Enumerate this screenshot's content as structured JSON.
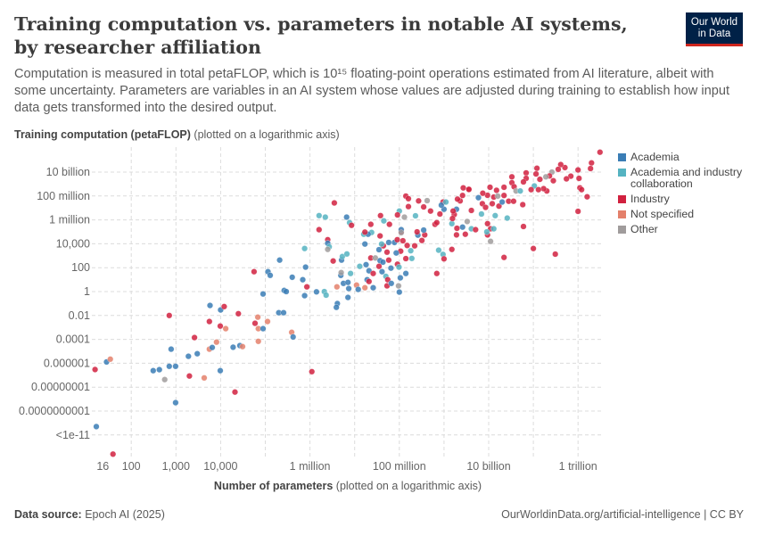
{
  "header": {
    "title": "Training computation vs. parameters in notable AI systems, by researcher affiliation",
    "subtitle": "Computation is measured in total petaFLOP, which is 10¹⁵ floating-point operations estimated from AI literature, albeit with some uncertainty. Parameters are variables in an AI system whose values are adjusted during training to establish how input data gets transformed into the desired output.",
    "logo_line1": "Our World",
    "logo_line2": "in Data"
  },
  "footer": {
    "source_label": "Data source:",
    "source": "Epoch AI (2025)",
    "url": "OurWorldinData.org/artificial-intelligence | CC BY"
  },
  "chart_data": {
    "type": "scatter",
    "ylabel_bold": "Training computation (petaFLOP)",
    "ylabel_note": "(plotted on a logarithmic axis)",
    "xlabel_bold": "Number of parameters",
    "xlabel_note": "(plotted on a logarithmic axis)",
    "xscale": "log",
    "yscale": "log",
    "grid": true,
    "legend_position": "right",
    "xticks": [
      {
        "value": 16,
        "label": "16"
      },
      {
        "value": 100,
        "label": "100"
      },
      {
        "value": 1000,
        "label": "1,000"
      },
      {
        "value": 10000,
        "label": "10,000"
      },
      {
        "value": 1000000,
        "label": "1 million"
      },
      {
        "value": 100000000,
        "label": "100 million"
      },
      {
        "value": 10000000000,
        "label": "10 billion"
      },
      {
        "value": 1000000000000,
        "label": "1 trillion"
      }
    ],
    "yticks": [
      {
        "value": 10000000000.0,
        "label": "10 billion"
      },
      {
        "value": 100000000.0,
        "label": "100 million"
      },
      {
        "value": 1000000.0,
        "label": "1 million"
      },
      {
        "value": 10000.0,
        "label": "10,000"
      },
      {
        "value": 100,
        "label": "100"
      },
      {
        "value": 1,
        "label": "1"
      },
      {
        "value": 0.01,
        "label": "0.01"
      },
      {
        "value": 0.0001,
        "label": "0.0001"
      },
      {
        "value": 1e-06,
        "label": "0.000001"
      },
      {
        "value": 1e-08,
        "label": "0.00000001"
      },
      {
        "value": 1e-10,
        "label": "0.0000000001"
      },
      {
        "value": 1e-12,
        "label": "<1e-11"
      }
    ],
    "series": [
      {
        "key": "A",
        "name": "Academia",
        "color": "#3a7db5"
      },
      {
        "key": "C",
        "name": "Academia and industry collaboration",
        "color": "#55b3c1"
      },
      {
        "key": "I",
        "name": "Industry",
        "color": "#d1213f"
      },
      {
        "key": "N",
        "name": "Not specified",
        "color": "#e4806b"
      },
      {
        "key": "O",
        "name": "Other",
        "color": "#a09c9c"
      }
    ],
    "points": [
      [
        15.5,
        3e-07,
        "I"
      ],
      [
        28,
        1.3e-06,
        "A"
      ],
      [
        34,
        2.2e-06,
        "N"
      ],
      [
        16.5,
        5e-12,
        "A"
      ],
      [
        39,
        2.5e-14,
        "I"
      ],
      [
        310,
        2.4e-07,
        "A"
      ],
      [
        425,
        2.9e-07,
        "A"
      ],
      [
        560,
        4.3e-08,
        "O"
      ],
      [
        710,
        5.6e-07,
        "A"
      ],
      [
        980,
        5.6e-07,
        "A"
      ],
      [
        780,
        1.5e-05,
        "A"
      ],
      [
        710,
        0.01,
        "I"
      ],
      [
        980,
        5e-10,
        "A"
      ],
      [
        1900,
        3.8e-06,
        "A"
      ],
      [
        3000,
        6.3e-06,
        "A"
      ],
      [
        2600,
        0.00014,
        "I"
      ],
      [
        2000,
        8.5e-08,
        "I"
      ],
      [
        4300,
        6e-08,
        "N"
      ],
      [
        5600,
        1.5e-05,
        "N"
      ],
      [
        6500,
        2.1e-05,
        "A"
      ],
      [
        8100,
        5.9e-05,
        "N"
      ],
      [
        9800,
        2.4e-07,
        "A"
      ],
      [
        5600,
        0.0031,
        "I"
      ],
      [
        5800,
        0.068,
        "A"
      ],
      [
        9800,
        0.0013,
        "I"
      ],
      [
        10000,
        0.029,
        "A"
      ],
      [
        12000,
        0.056,
        "I"
      ],
      [
        13000,
        0.00078,
        "N"
      ],
      [
        21000,
        3.9e-09,
        "I"
      ],
      [
        19000,
        2.2e-05,
        "A"
      ],
      [
        27000,
        3e-05,
        "A"
      ],
      [
        31000,
        2.5e-05,
        "N"
      ],
      [
        25000,
        0.014,
        "I"
      ],
      [
        56000,
        46,
        "I"
      ],
      [
        68000,
        0.0072,
        "N"
      ],
      [
        59000,
        0.0022,
        "I"
      ],
      [
        70000,
        0.00078,
        "N"
      ],
      [
        70000,
        6.9e-05,
        "N"
      ],
      [
        89000,
        0.00078,
        "A"
      ],
      [
        112000,
        0.0031,
        "N"
      ],
      [
        89000,
        0.63,
        "A"
      ],
      [
        115000,
        46,
        "A"
      ],
      [
        129000,
        23,
        "A"
      ],
      [
        210000,
        430,
        "A"
      ],
      [
        200000,
        0.017,
        "A"
      ],
      [
        257000,
        0.017,
        "A"
      ],
      [
        265000,
        1.25,
        "A"
      ],
      [
        295000,
        1,
        "A"
      ],
      [
        400000,
        16,
        "A"
      ],
      [
        390000,
        0.00039,
        "N"
      ],
      [
        420000,
        0.00016,
        "A"
      ],
      [
        690000,
        9.8,
        "A"
      ],
      [
        760000,
        0.45,
        "A"
      ],
      [
        850000,
        2.5,
        "I"
      ],
      [
        760000,
        4000,
        "C"
      ],
      [
        800000,
        110,
        "A"
      ],
      [
        1100000.0,
        2e-07,
        "I"
      ],
      [
        1400000.0,
        0.95,
        "A"
      ],
      [
        2100000.0,
        1,
        "C"
      ],
      [
        2300000.0,
        0.5,
        "C"
      ],
      [
        1600000.0,
        2300000.0,
        "C"
      ],
      [
        2200000.0,
        1700000.0,
        "C"
      ],
      [
        1600000.0,
        150000.0,
        "I"
      ],
      [
        3500000.0,
        26000000.0,
        "I"
      ],
      [
        2500000.0,
        22000.0,
        "I"
      ],
      [
        2500000.0,
        11000.0,
        "A"
      ],
      [
        2700000.0,
        5600,
        "C"
      ],
      [
        2500000.0,
        3400,
        "O"
      ],
      [
        3300000.0,
        360,
        "I"
      ],
      [
        4000000.0,
        2.5,
        "N"
      ],
      [
        4100000.0,
        0.1,
        "A"
      ],
      [
        3900000.0,
        0.048,
        "A"
      ],
      [
        6600000.0,
        1700000.0,
        "A"
      ],
      [
        7700000.0,
        590000.0,
        "C"
      ],
      [
        8500000.0,
        350000.0,
        "I"
      ],
      [
        5100000.0,
        430,
        "A"
      ],
      [
        5300000.0,
        850,
        "C"
      ],
      [
        6700000.0,
        1400,
        "C"
      ],
      [
        4900000.0,
        23,
        "A"
      ],
      [
        5000000.0,
        39,
        "O"
      ],
      [
        8100000.0,
        33,
        "C"
      ],
      [
        5600000.0,
        4.9,
        "A"
      ],
      [
        7100000.0,
        5.9,
        "A"
      ],
      [
        7400000.0,
        1.8,
        "A"
      ],
      [
        7100000.0,
        0.32,
        "A"
      ],
      [
        11000000.0,
        3.5,
        "N"
      ],
      [
        17000000.0,
        2.1,
        "N"
      ],
      [
        12000000.0,
        1.5,
        "A"
      ],
      [
        13000000.0,
        130,
        "C"
      ],
      [
        18000000.0,
        180,
        "A"
      ],
      [
        26000000.0,
        2.1,
        "A"
      ],
      [
        21000000.0,
        55,
        "A"
      ],
      [
        19000000.0,
        9.8,
        "A"
      ],
      [
        21000000.0,
        7,
        "I"
      ],
      [
        17000000.0,
        9500,
        "A"
      ],
      [
        16000000.0,
        63000.0,
        "C"
      ],
      [
        24000000.0,
        89000.0,
        "C"
      ],
      [
        20000000.0,
        63000.0,
        "A"
      ],
      [
        17000000.0,
        95000.0,
        "I"
      ],
      [
        23000000.0,
        420000.0,
        "I"
      ],
      [
        38000000.0,
        2300000.0,
        "I"
      ],
      [
        45000000.0,
        830000.0,
        "C"
      ],
      [
        60000000.0,
        420000.0,
        "I"
      ],
      [
        37000000.0,
        45000.0,
        "I"
      ],
      [
        35000000.0,
        3200,
        "A"
      ],
      [
        44000000.0,
        6700,
        "I"
      ],
      [
        40000000.0,
        9500,
        "C"
      ],
      [
        23000000.0,
        650,
        "I"
      ],
      [
        29000000.0,
        650,
        "O"
      ],
      [
        37000000.0,
        390,
        "A"
      ],
      [
        43000000.0,
        290,
        "A"
      ],
      [
        35000000.0,
        130,
        "I"
      ],
      [
        26000000.0,
        33,
        "I"
      ],
      [
        41000000.0,
        46,
        "A"
      ],
      [
        58000000.0,
        430,
        "I"
      ],
      [
        58000000.0,
        13000.0,
        "A"
      ],
      [
        53000000.0,
        2000,
        "I"
      ],
      [
        78000000.0,
        13000.0,
        "A"
      ],
      [
        90000000.0,
        22000.0,
        "I"
      ],
      [
        91000000.0,
        195,
        "I"
      ],
      [
        65000000.0,
        92,
        "A"
      ],
      [
        50000000.0,
        19,
        "C"
      ],
      [
        55000000.0,
        9.8,
        "I"
      ],
      [
        53000000.0,
        3,
        "I"
      ],
      [
        66000000.0,
        4.9,
        "A"
      ],
      [
        98000000.0,
        110,
        "C"
      ],
      [
        96000000.0,
        3,
        "O"
      ],
      [
        100000000.0,
        0.9,
        "A"
      ],
      [
        105000000.0,
        14,
        "A"
      ],
      [
        140000000.0,
        33,
        "A"
      ],
      [
        107000000.0,
        2400,
        "I"
      ],
      [
        85000000.0,
        1700,
        "A"
      ],
      [
        110000000.0,
        100000.0,
        "I"
      ],
      [
        110000000.0,
        150000.0,
        "A"
      ],
      [
        110000000.0,
        85000.0,
        "O"
      ],
      [
        100000000.0,
        5500000.0,
        "C"
      ],
      [
        130000000.0,
        1700000.0,
        "O"
      ],
      [
        91000000.0,
        2600000.0,
        "I"
      ],
      [
        140000000.0,
        98000000.0,
        "I"
      ],
      [
        160000000.0,
        60000000.0,
        "I"
      ],
      [
        160000000.0,
        13000000.0,
        "I"
      ],
      [
        120000000.0,
        18000.0,
        "I"
      ],
      [
        150000000.0,
        7200,
        "I"
      ],
      [
        180000000.0,
        2600,
        "C"
      ],
      [
        140000000.0,
        580,
        "I"
      ],
      [
        190000000.0,
        600,
        "C"
      ],
      [
        220000000.0,
        6700,
        "I"
      ],
      [
        260000000.0,
        53000.0,
        "A"
      ],
      [
        230000000.0,
        2200000.0,
        "C"
      ],
      [
        270000000.0,
        39000000.0,
        "I"
      ],
      [
        250000000.0,
        100000.0,
        "I"
      ],
      [
        350000000.0,
        12000000.0,
        "I"
      ],
      [
        420000000.0,
        41000000.0,
        "O"
      ],
      [
        370000000.0,
        56000.0,
        "I"
      ],
      [
        350000000.0,
        140000.0,
        "A"
      ],
      [
        320000000.0,
        19000.0,
        "I"
      ],
      [
        760000000.0,
        2900,
        "C"
      ],
      [
        950000000.0,
        1300,
        "C"
      ],
      [
        1000000000.0,
        550,
        "I"
      ],
      [
        690000000.0,
        33,
        "I"
      ],
      [
        630000000.0,
        420000.0,
        "I"
      ],
      [
        690000000.0,
        590000.0,
        "I"
      ],
      [
        1000000000.0,
        7700000.0,
        "A"
      ],
      [
        1500000000.0,
        490000.0,
        "C"
      ],
      [
        1500000000.0,
        3400,
        "I"
      ],
      [
        1900000000.0,
        56000.0,
        "I"
      ],
      [
        3000000000.0,
        63000.0,
        "I"
      ],
      [
        2600000000.0,
        250000.0,
        "A"
      ],
      [
        4100000000.0,
        180000.0,
        "C"
      ],
      [
        3300000000.0,
        740000.0,
        "O"
      ],
      [
        2700000000.0,
        480000000.0,
        "I"
      ],
      [
        3600000000.0,
        340000000.0,
        "I"
      ],
      [
        1700000000.0,
        2800000.0,
        "I"
      ],
      [
        1900000000.0,
        7700000.0,
        "A"
      ],
      [
        2300000000.0,
        39000000.0,
        "I"
      ],
      [
        950000000.0,
        31000000.0,
        "I"
      ],
      [
        3100000000000.0,
        460000000000.0,
        "I"
      ],
      [
        2000000000000.0,
        59000000000.0,
        "I"
      ],
      [
        1900000000000.0,
        20000000000.0,
        "I"
      ],
      [
        1000000000000.0,
        15000000000.0,
        "I"
      ],
      [
        1050000000000.0,
        3000000000.0,
        "I"
      ],
      [
        1100000000000.0,
        480000000.0,
        "I"
      ],
      [
        1200000000000.0,
        340000000.0,
        "I"
      ],
      [
        1600000000000.0,
        85000000.0,
        "I"
      ],
      [
        1000000000000.0,
        5200000.0,
        "I"
      ],
      [
        690000000000.0,
        4500000000.0,
        "I"
      ],
      [
        550000000000.0,
        2700000000.0,
        "I"
      ],
      [
        510000000000.0,
        24000000000.0,
        "I"
      ],
      [
        410000000000.0,
        42000000000.0,
        "I"
      ],
      [
        360000000000.0,
        17000000000.0,
        "I"
      ],
      [
        260000000000.0,
        10000000000.0,
        "O"
      ],
      [
        230000000000.0,
        4800000000.0,
        "I"
      ],
      [
        280000000000.0,
        1900000000.0,
        "I"
      ],
      [
        200000000000.0,
        260000000.0,
        "I"
      ],
      [
        170000000000.0,
        410000000.0,
        "I"
      ],
      [
        310000000000.0,
        1360,
        "I"
      ],
      [
        100000000000.0,
        4000,
        "I"
      ],
      [
        120000000000.0,
        21000000000.0,
        "I"
      ],
      [
        190000000000.0,
        4000000000.0,
        "O"
      ],
      [
        115000000000.0,
        7000000000.0,
        "I"
      ],
      [
        140000000000.0,
        2500000000.0,
        "I"
      ],
      [
        69000000000.0,
        8500000000.0,
        "I"
      ],
      [
        69000000000.0,
        3000000000.0,
        "I"
      ],
      [
        105000000000.0,
        700000000.0,
        "C"
      ],
      [
        130000000000.0,
        340000000.0,
        "I"
      ],
      [
        89000000000.0,
        340000000.0,
        "I"
      ],
      [
        60000000000.0,
        1500000000.0,
        "I"
      ],
      [
        33000000000.0,
        4000000000.0,
        "I"
      ],
      [
        33000000000.0,
        1300000000.0,
        "I"
      ],
      [
        22000000000.0,
        540000000.0,
        "I"
      ],
      [
        37000000000.0,
        600000000.0,
        "I"
      ],
      [
        41000000000.0,
        260000000.0,
        "O"
      ],
      [
        51000000000.0,
        260000000.0,
        "C"
      ],
      [
        58000000000.0,
        19000000.0,
        "I"
      ],
      [
        60000000000.0,
        280000.0,
        "I"
      ],
      [
        22000000000.0,
        720,
        "I"
      ],
      [
        15000000000.0,
        300000000.0,
        "I"
      ],
      [
        10700000000.0,
        540000000.0,
        "I"
      ],
      [
        13000000000.0,
        81000000.0,
        "I"
      ],
      [
        22000000000.0,
        110000000.0,
        "I"
      ],
      [
        28000000000.0,
        36000000.0,
        "I"
      ],
      [
        36000000000.0,
        36000000.0,
        "I"
      ],
      [
        17000000000.0,
        14000000.0,
        "I"
      ],
      [
        20000000000.0,
        31000000.0,
        "A"
      ],
      [
        9400000000.0,
        115000000.0,
        "I"
      ],
      [
        7400000000.0,
        170000000.0,
        "I"
      ],
      [
        16000000000.0,
        98000000.0,
        "O"
      ],
      [
        12000000000.0,
        23000000.0,
        "I"
      ],
      [
        7200000000.0,
        23000000.0,
        "I"
      ],
      [
        8500000000.0,
        11000000.0,
        "I"
      ],
      [
        5900000000.0,
        72000000.0,
        "A"
      ],
      [
        6900000000.0,
        3100000.0,
        "C"
      ],
      [
        14000000000.0,
        2300000.0,
        "C"
      ],
      [
        26000000000.0,
        1400000.0,
        "C"
      ],
      [
        9400000000.0,
        490000.0,
        "I"
      ],
      [
        11000000000.0,
        180000.0,
        "I"
      ],
      [
        9400000000.0,
        56000.0,
        "I"
      ],
      [
        13000000000.0,
        180000.0,
        "C"
      ],
      [
        9100000000.0,
        100000.0,
        "C"
      ],
      [
        11000000000.0,
        16000.0,
        "O"
      ],
      [
        5100000000.0,
        150000.0,
        "I"
      ],
      [
        4100000000.0,
        6200000.0,
        "I"
      ],
      [
        3600000000.0,
        360000000.0,
        "I"
      ],
      [
        2600000000.0,
        110000000.0,
        "I"
      ],
      [
        2000000000.0,
        55000000.0,
        "I"
      ],
      [
        1600000000.0,
        5500000.0,
        "I"
      ],
      [
        1550000000.0,
        1300000.0,
        "I"
      ],
      [
        1950000000.0,
        200000.0,
        "I"
      ],
      [
        870000000.0,
        17000000.0,
        "A"
      ],
      [
        1100000000.0,
        31000000.0,
        "C"
      ],
      [
        500000000.0,
        5500000.0,
        "I"
      ],
      [
        810000000.0,
        3100000.0,
        "I"
      ]
    ]
  }
}
